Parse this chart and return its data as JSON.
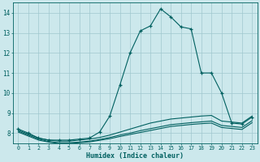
{
  "xlabel": "Humidex (Indice chaleur)",
  "ylabel": "",
  "bg_color": "#cce8ec",
  "grid_color": "#a0c8cf",
  "line_color": "#006060",
  "xlim_min": -0.5,
  "xlim_max": 23.5,
  "ylim_min": 7.5,
  "ylim_max": 14.5,
  "xticks": [
    0,
    1,
    2,
    3,
    4,
    5,
    6,
    7,
    8,
    9,
    10,
    11,
    12,
    13,
    14,
    15,
    16,
    17,
    18,
    19,
    20,
    21,
    22,
    23
  ],
  "yticks": [
    8,
    9,
    10,
    11,
    12,
    13,
    14
  ],
  "series": [
    {
      "x": [
        0,
        1,
        2,
        3,
        4,
        5,
        6,
        7,
        8,
        9,
        10,
        11,
        12,
        13,
        14,
        15,
        16,
        17,
        18,
        19,
        20,
        21,
        22,
        23
      ],
      "y": [
        8.2,
        8.0,
        7.75,
        7.65,
        7.65,
        7.65,
        7.7,
        7.75,
        8.05,
        8.85,
        10.4,
        12.0,
        13.1,
        13.35,
        14.2,
        13.8,
        13.3,
        13.2,
        11.0,
        11.0,
        10.0,
        8.5,
        8.45,
        8.8
      ],
      "marker": "+"
    },
    {
      "x": [
        0,
        1,
        2,
        3,
        4,
        5,
        6,
        7,
        8,
        9,
        10,
        11,
        12,
        13,
        14,
        15,
        16,
        17,
        18,
        19,
        20,
        21,
        22,
        23
      ],
      "y": [
        8.15,
        7.95,
        7.75,
        7.65,
        7.6,
        7.6,
        7.65,
        7.7,
        7.78,
        7.9,
        8.05,
        8.2,
        8.35,
        8.5,
        8.6,
        8.7,
        8.75,
        8.8,
        8.85,
        8.88,
        8.6,
        8.55,
        8.5,
        8.85
      ],
      "marker": null
    },
    {
      "x": [
        0,
        1,
        2,
        3,
        4,
        5,
        6,
        7,
        8,
        9,
        10,
        11,
        12,
        13,
        14,
        15,
        16,
        17,
        18,
        19,
        20,
        21,
        22,
        23
      ],
      "y": [
        8.1,
        7.9,
        7.7,
        7.58,
        7.52,
        7.52,
        7.55,
        7.6,
        7.68,
        7.78,
        7.9,
        8.0,
        8.12,
        8.22,
        8.32,
        8.42,
        8.47,
        8.52,
        8.56,
        8.6,
        8.38,
        8.33,
        8.28,
        8.62
      ],
      "marker": null
    },
    {
      "x": [
        0,
        1,
        2,
        3,
        4,
        5,
        6,
        7,
        8,
        9,
        10,
        11,
        12,
        13,
        14,
        15,
        16,
        17,
        18,
        19,
        20,
        21,
        22,
        23
      ],
      "y": [
        8.05,
        7.85,
        7.65,
        7.55,
        7.48,
        7.48,
        7.52,
        7.56,
        7.64,
        7.72,
        7.83,
        7.93,
        8.03,
        8.13,
        8.23,
        8.33,
        8.38,
        8.43,
        8.47,
        8.5,
        8.28,
        8.23,
        8.18,
        8.52
      ],
      "marker": null
    }
  ]
}
